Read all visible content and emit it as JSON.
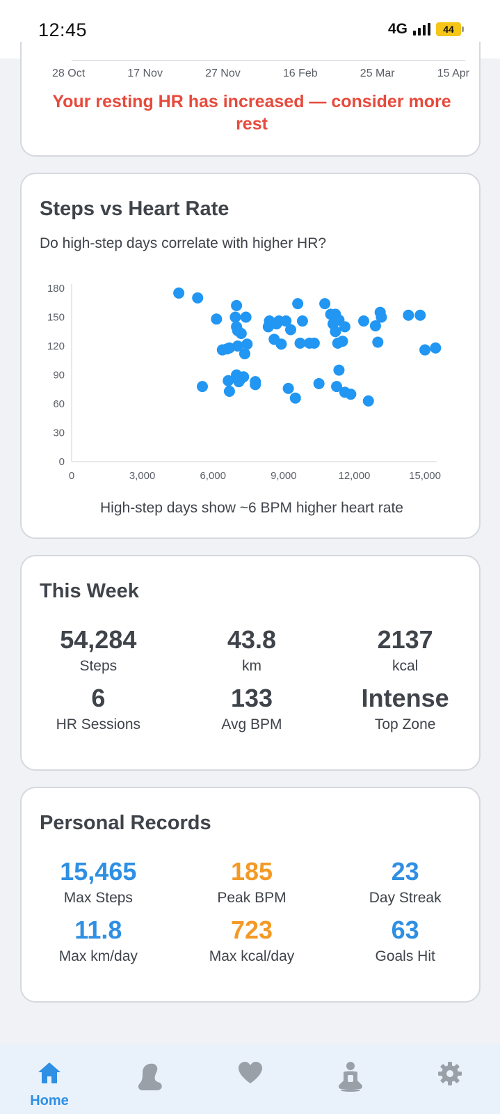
{
  "status_bar": {
    "time": "12:45",
    "network": "4G",
    "battery": "44"
  },
  "hr_card": {
    "date_labels": [
      "28 Oct",
      "17 Nov",
      "27 Nov",
      "16 Feb",
      "25 Mar",
      "15 Apr"
    ],
    "warning": "Your resting HR has increased — consider more rest"
  },
  "scatter_card": {
    "title": "Steps vs Heart Rate",
    "subtitle": "Do high-step days correlate with higher HR?",
    "caption": "High-step days show ~6 BPM higher heart rate",
    "point_color": "#2196F3"
  },
  "chart_data": {
    "type": "scatter",
    "title": "Steps vs Heart Rate",
    "xlabel": "",
    "ylabel": "",
    "xlim": [
      0,
      15500
    ],
    "ylim": [
      0,
      180
    ],
    "x_ticks": [
      "0",
      "3,000",
      "6,000",
      "9,000",
      "12,000",
      "15,000"
    ],
    "y_ticks": [
      "0",
      "30",
      "60",
      "90",
      "120",
      "150",
      "180"
    ],
    "grid": false,
    "points": [
      [
        4550,
        175
      ],
      [
        5350,
        170
      ],
      [
        6150,
        148
      ],
      [
        6400,
        116
      ],
      [
        6600,
        117
      ],
      [
        6700,
        118
      ],
      [
        5550,
        78
      ],
      [
        6650,
        84
      ],
      [
        6700,
        73
      ],
      [
        7000,
        162
      ],
      [
        6950,
        150
      ],
      [
        7000,
        140
      ],
      [
        7050,
        136
      ],
      [
        7200,
        133
      ],
      [
        7050,
        120
      ],
      [
        7350,
        112
      ],
      [
        7450,
        122
      ],
      [
        7400,
        150
      ],
      [
        7000,
        90
      ],
      [
        7150,
        85
      ],
      [
        7300,
        88
      ],
      [
        7100,
        83
      ],
      [
        7800,
        83
      ],
      [
        7800,
        80
      ],
      [
        8400,
        146
      ],
      [
        8350,
        140
      ],
      [
        8600,
        127
      ],
      [
        8700,
        143
      ],
      [
        8800,
        146
      ],
      [
        8900,
        122
      ],
      [
        9100,
        146
      ],
      [
        9300,
        137
      ],
      [
        9600,
        164
      ],
      [
        9800,
        146
      ],
      [
        9700,
        123
      ],
      [
        10100,
        123
      ],
      [
        10300,
        123
      ],
      [
        9200,
        76
      ],
      [
        9500,
        66
      ],
      [
        10500,
        81
      ],
      [
        10750,
        164
      ],
      [
        11000,
        153
      ],
      [
        11100,
        143
      ],
      [
        11200,
        135
      ],
      [
        11200,
        153
      ],
      [
        11350,
        147
      ],
      [
        11500,
        125
      ],
      [
        11600,
        140
      ],
      [
        11300,
        123
      ],
      [
        11350,
        95
      ],
      [
        11250,
        78
      ],
      [
        11600,
        72
      ],
      [
        11850,
        70
      ],
      [
        12400,
        146
      ],
      [
        12600,
        63
      ],
      [
        12900,
        141
      ],
      [
        13000,
        124
      ],
      [
        13100,
        155
      ],
      [
        13150,
        150
      ],
      [
        14300,
        152
      ],
      [
        14800,
        152
      ],
      [
        15000,
        116
      ],
      [
        15450,
        118
      ]
    ]
  },
  "this_week": {
    "title": "This Week",
    "stats": [
      {
        "value": "54,284",
        "label": "Steps"
      },
      {
        "value": "43.8",
        "label": "km"
      },
      {
        "value": "2137",
        "label": "kcal"
      },
      {
        "value": "6",
        "label": "HR Sessions"
      },
      {
        "value": "133",
        "label": "Avg BPM"
      },
      {
        "value": "Intense",
        "label": "Top Zone"
      }
    ]
  },
  "records": {
    "title": "Personal Records",
    "stats": [
      {
        "value": "15,465",
        "label": "Max Steps",
        "color": "#2f8fe3"
      },
      {
        "value": "185",
        "label": "Peak BPM",
        "color": "#f39a26"
      },
      {
        "value": "23",
        "label": "Day Streak",
        "color": "#2f8fe3"
      },
      {
        "value": "11.8",
        "label": "Max km/day",
        "color": "#2f8fe3"
      },
      {
        "value": "723",
        "label": "Max kcal/day",
        "color": "#f39a26"
      },
      {
        "value": "63",
        "label": "Goals Hit",
        "color": "#2f8fe3"
      }
    ]
  },
  "bottom_nav": {
    "items": [
      {
        "name": "home",
        "label": "Home",
        "icon": "home-icon",
        "active": true
      },
      {
        "name": "steps",
        "label": "",
        "icon": "footprint-icon",
        "active": false
      },
      {
        "name": "heart",
        "label": "",
        "icon": "heart-icon",
        "active": false
      },
      {
        "name": "wellness",
        "label": "",
        "icon": "meditation-icon",
        "active": false
      },
      {
        "name": "settings",
        "label": "",
        "icon": "gear-icon",
        "active": false
      }
    ],
    "active_color": "#2f8fe3",
    "inactive_color": "#9aa0a8"
  }
}
